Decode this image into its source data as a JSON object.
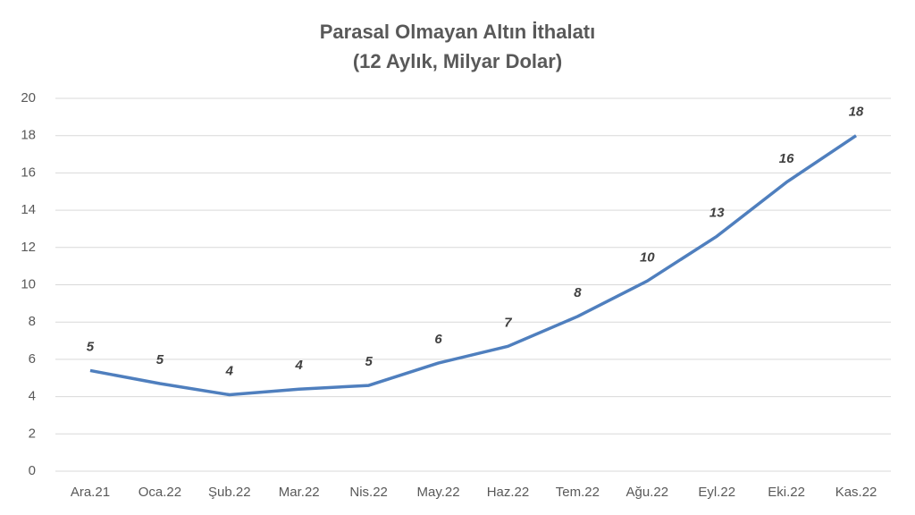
{
  "chart_data": {
    "type": "line",
    "title": [
      "Parasal Olmayan Altın İthalatı",
      "(12 Aylık, Milyar Dolar)"
    ],
    "categories": [
      "Ara.21",
      "Oca.22",
      "Şub.22",
      "Mar.22",
      "Nis.22",
      "May.22",
      "Haz.22",
      "Tem.22",
      "Ağu.22",
      "Eyl.22",
      "Eki.22",
      "Kas.22"
    ],
    "series": [
      {
        "color": "#4f7fbe",
        "values": [
          5.4,
          4.7,
          4.1,
          4.4,
          4.6,
          5.8,
          6.7,
          8.3,
          10.2,
          12.6,
          15.5,
          18.0
        ],
        "value_labels": [
          "5",
          "5",
          "4",
          "4",
          "5",
          "6",
          "7",
          "8",
          "10",
          "13",
          "16",
          "18"
        ]
      }
    ],
    "ylim": [
      0,
      20
    ],
    "yticks": [
      0,
      2,
      4,
      6,
      8,
      10,
      12,
      14,
      16,
      18,
      20
    ],
    "grid": true
  }
}
